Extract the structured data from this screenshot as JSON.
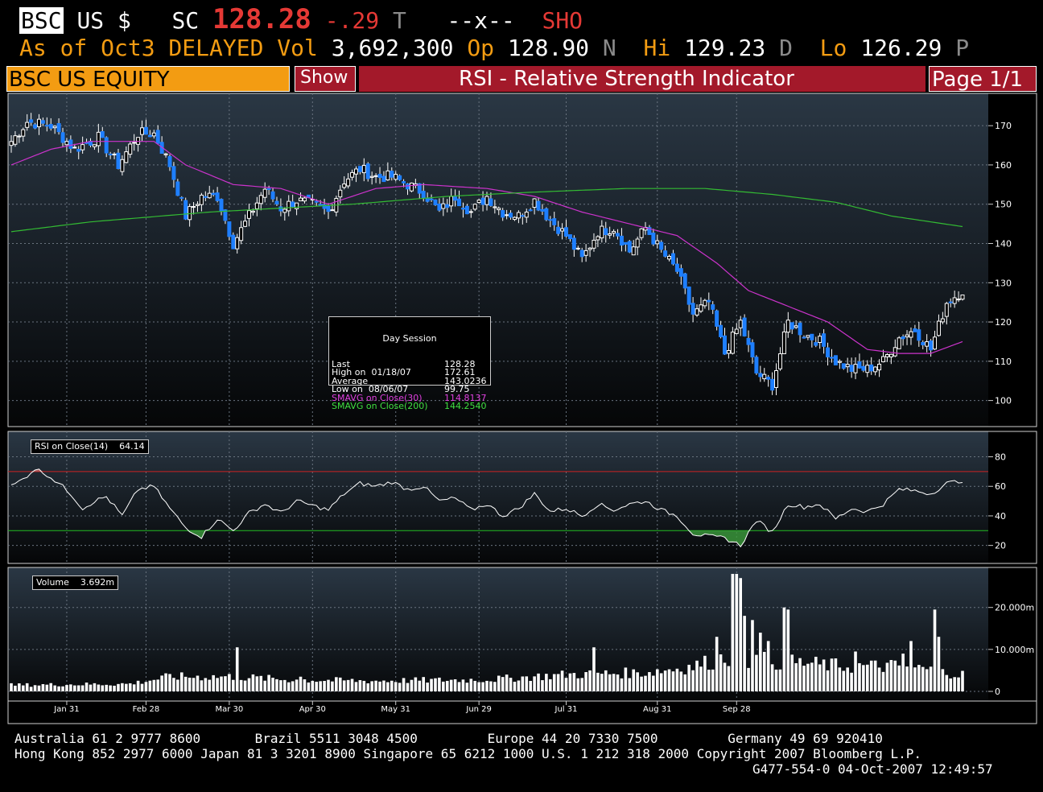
{
  "header": {
    "ticker": "BSC",
    "market": "US $",
    "sc_label": "SC",
    "price": "128.28",
    "change": "-.29",
    "change_flag": "T",
    "xfield": "--x--",
    "sho": "SHO",
    "asof": "As of Oct3 DELAYED",
    "vol_label": "Vol",
    "vol_value": "3,692,300",
    "op_label": "Op",
    "op_value": "128.90",
    "op_flag": "N",
    "hi_label": "Hi",
    "hi_value": "129.23",
    "hi_flag": "D",
    "lo_label": "Lo",
    "lo_value": "126.29",
    "lo_flag": "P"
  },
  "toolbar": {
    "security": "BSC US EQUITY",
    "show_label": "Show",
    "title": "RSI - Relative Strength Indicator",
    "page": "Page 1/1"
  },
  "legend_box": {
    "heading": "Day Session",
    "rows": [
      {
        "label": "Last",
        "value": "128.28",
        "color": "#ffffff"
      },
      {
        "label": "High on  01/18/07",
        "value": "172.61",
        "color": "#ffffff"
      },
      {
        "label": "Average",
        "value": "143.0236",
        "color": "#ffffff"
      },
      {
        "label": "Low on  08/06/07",
        "value": "99.75",
        "color": "#ffffff"
      },
      {
        "label": "SMAVG on Close(30)",
        "value": "114.8137",
        "color": "#e040e0"
      },
      {
        "label": "SMAVG on Close(200)",
        "value": "144.2540",
        "color": "#40e040"
      }
    ]
  },
  "rsi_box": {
    "label": "RSI on Close(14)",
    "value": "64.14"
  },
  "volume_box": {
    "label": "Volume",
    "value": "3.692m"
  },
  "colors": {
    "candle_down": "#1e7fff",
    "candle_up": "#ffffff",
    "sma30": "#cc33cc",
    "sma200": "#33bb33",
    "rsi_upper": "#cc2222",
    "rsi_lower": "#22bb22",
    "title_bar": "#a3192a",
    "orange": "#f39c12"
  },
  "chart_data": [
    {
      "type": "candlestick",
      "title": "",
      "ylim": [
        95,
        177
      ],
      "yticks": [
        "170",
        "160",
        "150",
        "140",
        "130",
        "120",
        "110",
        "100"
      ],
      "ytick_values": [
        170,
        160,
        150,
        140,
        130,
        120,
        110,
        100
      ],
      "xticks": [
        "Jan 31",
        "Feb 28",
        "Mar 30",
        "Apr 30",
        "May 31",
        "Jun 29",
        "Jul 31",
        "Aug 31",
        "Sep 28"
      ],
      "close_anchors": [
        {
          "i": 0,
          "v": 166
        },
        {
          "i": 4,
          "v": 171
        },
        {
          "i": 10,
          "v": 170
        },
        {
          "i": 16,
          "v": 164
        },
        {
          "i": 22,
          "v": 167
        },
        {
          "i": 27,
          "v": 160
        },
        {
          "i": 32,
          "v": 168
        },
        {
          "i": 36,
          "v": 168
        },
        {
          "i": 40,
          "v": 160
        },
        {
          "i": 44,
          "v": 147
        },
        {
          "i": 48,
          "v": 152
        },
        {
          "i": 52,
          "v": 152
        },
        {
          "i": 56,
          "v": 140
        },
        {
          "i": 60,
          "v": 147
        },
        {
          "i": 64,
          "v": 154
        },
        {
          "i": 68,
          "v": 149
        },
        {
          "i": 72,
          "v": 151
        },
        {
          "i": 76,
          "v": 150
        },
        {
          "i": 80,
          "v": 148
        },
        {
          "i": 84,
          "v": 156
        },
        {
          "i": 88,
          "v": 159
        },
        {
          "i": 92,
          "v": 157
        },
        {
          "i": 96,
          "v": 157
        },
        {
          "i": 100,
          "v": 155
        },
        {
          "i": 104,
          "v": 153
        },
        {
          "i": 108,
          "v": 148
        },
        {
          "i": 112,
          "v": 152
        },
        {
          "i": 116,
          "v": 148
        },
        {
          "i": 120,
          "v": 152
        },
        {
          "i": 124,
          "v": 148
        },
        {
          "i": 128,
          "v": 147
        },
        {
          "i": 132,
          "v": 151
        },
        {
          "i": 136,
          "v": 146
        },
        {
          "i": 140,
          "v": 142
        },
        {
          "i": 144,
          "v": 136
        },
        {
          "i": 148,
          "v": 143
        },
        {
          "i": 152,
          "v": 144
        },
        {
          "i": 156,
          "v": 138
        },
        {
          "i": 160,
          "v": 144
        },
        {
          "i": 164,
          "v": 138
        },
        {
          "i": 168,
          "v": 133
        },
        {
          "i": 172,
          "v": 122
        },
        {
          "i": 176,
          "v": 125
        },
        {
          "i": 180,
          "v": 112
        },
        {
          "i": 184,
          "v": 120
        },
        {
          "i": 188,
          "v": 107
        },
        {
          "i": 192,
          "v": 104
        },
        {
          "i": 196,
          "v": 120
        },
        {
          "i": 200,
          "v": 117
        },
        {
          "i": 204,
          "v": 115
        },
        {
          "i": 208,
          "v": 110
        },
        {
          "i": 212,
          "v": 108
        },
        {
          "i": 216,
          "v": 108
        },
        {
          "i": 220,
          "v": 110
        },
        {
          "i": 224,
          "v": 116
        },
        {
          "i": 228,
          "v": 118
        },
        {
          "i": 232,
          "v": 113
        },
        {
          "i": 236,
          "v": 125
        },
        {
          "i": 240,
          "v": 128
        }
      ],
      "sma30": [
        {
          "i": 0,
          "v": 160
        },
        {
          "i": 10,
          "v": 164
        },
        {
          "i": 20,
          "v": 166
        },
        {
          "i": 36,
          "v": 166
        },
        {
          "i": 44,
          "v": 160
        },
        {
          "i": 56,
          "v": 155
        },
        {
          "i": 68,
          "v": 154
        },
        {
          "i": 80,
          "v": 150
        },
        {
          "i": 92,
          "v": 154
        },
        {
          "i": 104,
          "v": 155
        },
        {
          "i": 120,
          "v": 154
        },
        {
          "i": 132,
          "v": 152
        },
        {
          "i": 144,
          "v": 148
        },
        {
          "i": 156,
          "v": 145
        },
        {
          "i": 168,
          "v": 142
        },
        {
          "i": 178,
          "v": 135
        },
        {
          "i": 186,
          "v": 128
        },
        {
          "i": 196,
          "v": 124
        },
        {
          "i": 206,
          "v": 120
        },
        {
          "i": 216,
          "v": 113
        },
        {
          "i": 224,
          "v": 112
        },
        {
          "i": 232,
          "v": 112
        },
        {
          "i": 240,
          "v": 115
        }
      ],
      "sma200": [
        {
          "i": 0,
          "v": 143
        },
        {
          "i": 20,
          "v": 145.5
        },
        {
          "i": 50,
          "v": 148
        },
        {
          "i": 86,
          "v": 150
        },
        {
          "i": 110,
          "v": 152
        },
        {
          "i": 130,
          "v": 153
        },
        {
          "i": 155,
          "v": 154
        },
        {
          "i": 175,
          "v": 154
        },
        {
          "i": 192,
          "v": 152.5
        },
        {
          "i": 208,
          "v": 150.5
        },
        {
          "i": 222,
          "v": 147
        },
        {
          "i": 240,
          "v": 144.3
        }
      ]
    },
    {
      "type": "line",
      "title": "",
      "ylim": [
        10,
        95
      ],
      "yticks": [
        "80",
        "60",
        "40",
        "20"
      ],
      "ytick_values": [
        80,
        60,
        40,
        20
      ],
      "levels": [
        70,
        30
      ],
      "anchors": [
        {
          "i": 0,
          "v": 60
        },
        {
          "i": 3,
          "v": 65
        },
        {
          "i": 6,
          "v": 72
        },
        {
          "i": 9,
          "v": 68
        },
        {
          "i": 12,
          "v": 62
        },
        {
          "i": 15,
          "v": 55
        },
        {
          "i": 18,
          "v": 45
        },
        {
          "i": 21,
          "v": 50
        },
        {
          "i": 24,
          "v": 53
        },
        {
          "i": 28,
          "v": 40
        },
        {
          "i": 32,
          "v": 58
        },
        {
          "i": 36,
          "v": 60
        },
        {
          "i": 40,
          "v": 45
        },
        {
          "i": 44,
          "v": 32
        },
        {
          "i": 48,
          "v": 26
        },
        {
          "i": 52,
          "v": 38
        },
        {
          "i": 56,
          "v": 30
        },
        {
          "i": 60,
          "v": 42
        },
        {
          "i": 64,
          "v": 48
        },
        {
          "i": 68,
          "v": 42
        },
        {
          "i": 72,
          "v": 50
        },
        {
          "i": 76,
          "v": 47
        },
        {
          "i": 80,
          "v": 44
        },
        {
          "i": 84,
          "v": 55
        },
        {
          "i": 88,
          "v": 62
        },
        {
          "i": 92,
          "v": 60
        },
        {
          "i": 96,
          "v": 63
        },
        {
          "i": 100,
          "v": 58
        },
        {
          "i": 104,
          "v": 60
        },
        {
          "i": 108,
          "v": 50
        },
        {
          "i": 112,
          "v": 52
        },
        {
          "i": 116,
          "v": 44
        },
        {
          "i": 120,
          "v": 48
        },
        {
          "i": 124,
          "v": 40
        },
        {
          "i": 128,
          "v": 45
        },
        {
          "i": 132,
          "v": 55
        },
        {
          "i": 136,
          "v": 43
        },
        {
          "i": 140,
          "v": 45
        },
        {
          "i": 144,
          "v": 40
        },
        {
          "i": 148,
          "v": 48
        },
        {
          "i": 152,
          "v": 44
        },
        {
          "i": 156,
          "v": 48
        },
        {
          "i": 160,
          "v": 50
        },
        {
          "i": 164,
          "v": 44
        },
        {
          "i": 168,
          "v": 40
        },
        {
          "i": 172,
          "v": 28
        },
        {
          "i": 176,
          "v": 26
        },
        {
          "i": 180,
          "v": 25
        },
        {
          "i": 184,
          "v": 20
        },
        {
          "i": 188,
          "v": 37
        },
        {
          "i": 192,
          "v": 29
        },
        {
          "i": 196,
          "v": 48
        },
        {
          "i": 200,
          "v": 46
        },
        {
          "i": 204,
          "v": 48
        },
        {
          "i": 208,
          "v": 38
        },
        {
          "i": 212,
          "v": 45
        },
        {
          "i": 216,
          "v": 43
        },
        {
          "i": 220,
          "v": 48
        },
        {
          "i": 224,
          "v": 58
        },
        {
          "i": 228,
          "v": 57
        },
        {
          "i": 232,
          "v": 55
        },
        {
          "i": 236,
          "v": 62
        },
        {
          "i": 240,
          "v": 64
        }
      ]
    },
    {
      "type": "bar",
      "title": "",
      "ylim": [
        0,
        28
      ],
      "yticks": [
        "20.000m",
        "10.000m",
        "0"
      ],
      "ytick_values": [
        20,
        10,
        0
      ],
      "base_volume": [
        {
          "i": 0,
          "v": 1.5
        },
        {
          "i": 30,
          "v": 1.8
        },
        {
          "i": 40,
          "v": 3.5
        },
        {
          "i": 56,
          "v": 3.5
        },
        {
          "i": 70,
          "v": 2.8
        },
        {
          "i": 90,
          "v": 2.5
        },
        {
          "i": 120,
          "v": 2.8
        },
        {
          "i": 140,
          "v": 4
        },
        {
          "i": 160,
          "v": 4.5
        },
        {
          "i": 172,
          "v": 6
        },
        {
          "i": 180,
          "v": 8
        },
        {
          "i": 195,
          "v": 7
        },
        {
          "i": 210,
          "v": 6
        },
        {
          "i": 225,
          "v": 6
        },
        {
          "i": 240,
          "v": 4
        }
      ],
      "spikes": [
        {
          "i": 57,
          "v": 10.5
        },
        {
          "i": 73,
          "v": 3.5
        },
        {
          "i": 147,
          "v": 10.5
        },
        {
          "i": 178,
          "v": 13
        },
        {
          "i": 182,
          "v": 28
        },
        {
          "i": 183,
          "v": 28
        },
        {
          "i": 184,
          "v": 27
        },
        {
          "i": 185,
          "v": 18
        },
        {
          "i": 187,
          "v": 17
        },
        {
          "i": 189,
          "v": 14
        },
        {
          "i": 191,
          "v": 12
        },
        {
          "i": 195,
          "v": 20
        },
        {
          "i": 196,
          "v": 19.5
        },
        {
          "i": 213,
          "v": 9.5
        },
        {
          "i": 225,
          "v": 9
        },
        {
          "i": 227,
          "v": 12
        },
        {
          "i": 233,
          "v": 19.5
        },
        {
          "i": 234,
          "v": 13
        }
      ]
    }
  ]
}
